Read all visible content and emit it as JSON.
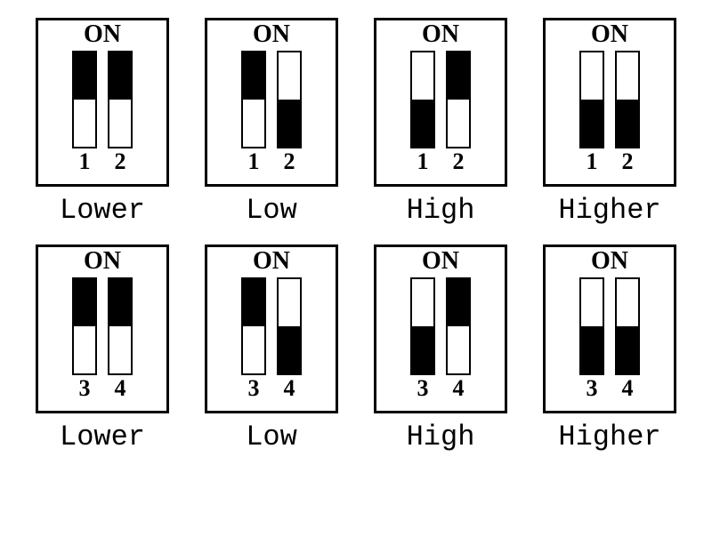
{
  "background_color": "#ffffff",
  "border_color": "#000000",
  "fill_color": "#000000",
  "text_color": "#000000",
  "on_text": "ON",
  "box_border_width": 3,
  "switch_border_width": 2,
  "on_fontsize": 28,
  "num_fontsize": 26,
  "label_fontsize": 32,
  "rows": [
    {
      "switches_numbers": [
        "1",
        "2"
      ],
      "units": [
        {
          "label": "Lower",
          "switch1_fill": "top",
          "switch2_fill": "top"
        },
        {
          "label": "Low",
          "switch1_fill": "top",
          "switch2_fill": "bottom"
        },
        {
          "label": "High",
          "switch1_fill": "bottom",
          "switch2_fill": "top"
        },
        {
          "label": "Higher",
          "switch1_fill": "bottom",
          "switch2_fill": "bottom"
        }
      ]
    },
    {
      "switches_numbers": [
        "3",
        "4"
      ],
      "units": [
        {
          "label": "Lower",
          "switch1_fill": "top",
          "switch2_fill": "top"
        },
        {
          "label": "Low",
          "switch1_fill": "top",
          "switch2_fill": "bottom"
        },
        {
          "label": "High",
          "switch1_fill": "bottom",
          "switch2_fill": "top"
        },
        {
          "label": "Higher",
          "switch1_fill": "bottom",
          "switch2_fill": "bottom"
        }
      ]
    }
  ]
}
